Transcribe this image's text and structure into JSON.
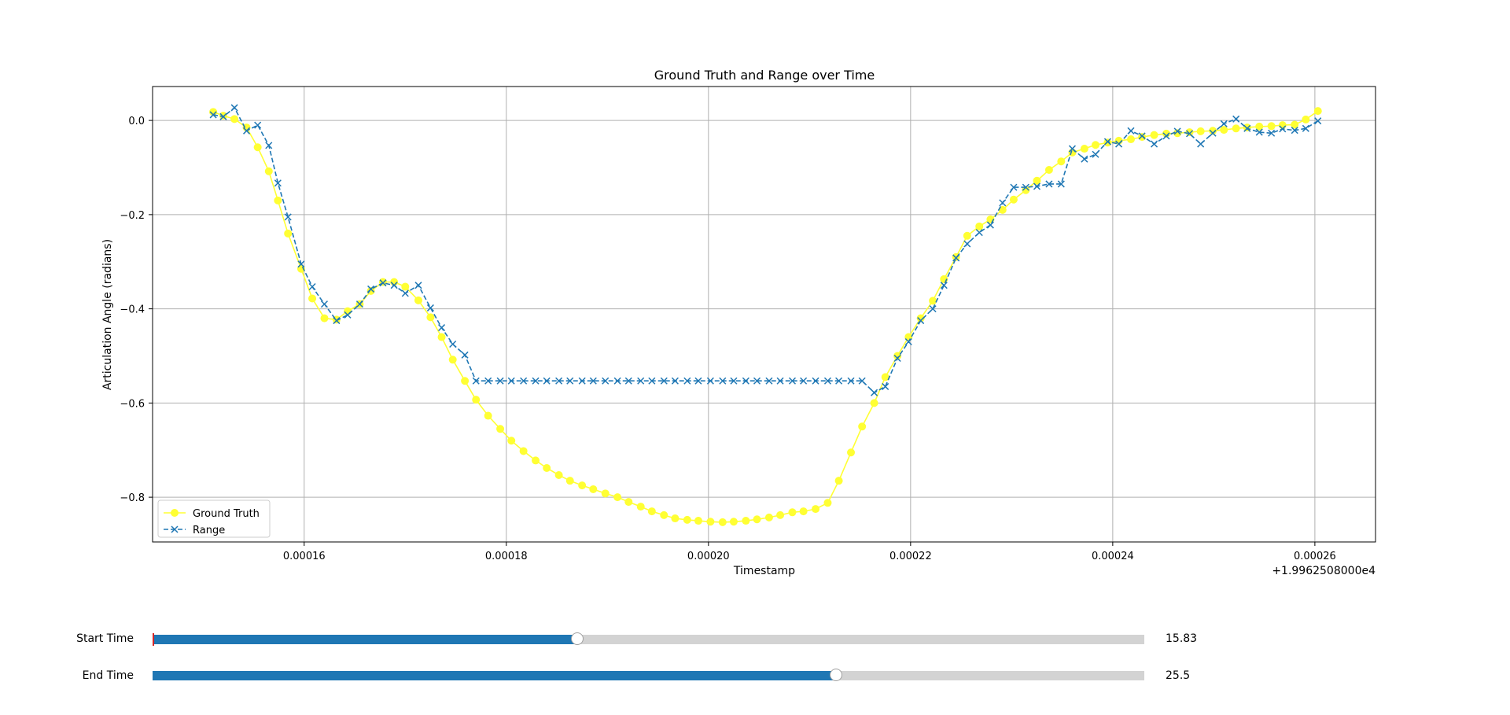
{
  "chart_data": {
    "type": "line",
    "title": "Ground Truth and Range over Time",
    "xlabel": "Timestamp",
    "ylabel": "Articulation Angle (radians)",
    "x_offset_label": "+1.9962508000e4",
    "xlim": [
      0.000145,
      0.000266
    ],
    "ylim": [
      -0.895,
      0.072
    ],
    "xticks": [
      0.00016,
      0.00018,
      0.0002,
      0.00022,
      0.00024,
      0.00026
    ],
    "xtick_labels": [
      "0.00016",
      "0.00018",
      "0.00020",
      "0.00022",
      "0.00024",
      "0.00026"
    ],
    "yticks": [
      0.0,
      -0.2,
      -0.4,
      -0.6,
      -0.8
    ],
    "ytick_labels": [
      "0.0",
      "−0.2",
      "−0.4",
      "−0.6",
      "−0.8"
    ],
    "grid": true,
    "legend_position": "lower-left",
    "series": [
      {
        "name": "Ground Truth",
        "color": "#ffff33",
        "marker": "circle",
        "linestyle": "solid",
        "x": [
          0.000151,
          0.000152,
          0.0001531,
          0.0001543,
          0.0001554,
          0.0001565,
          0.0001574,
          0.0001584,
          0.0001597,
          0.0001608,
          0.000162,
          0.0001632,
          0.0001643,
          0.0001655,
          0.0001666,
          0.0001678,
          0.0001689,
          0.00017,
          0.0001713,
          0.0001725,
          0.0001736,
          0.0001747,
          0.0001759,
          0.000177,
          0.0001782,
          0.0001794,
          0.0001805,
          0.0001817,
          0.0001829,
          0.000184,
          0.0001852,
          0.0001863,
          0.0001875,
          0.0001886,
          0.0001898,
          0.000191,
          0.0001921,
          0.0001933,
          0.0001944,
          0.0001956,
          0.0001967,
          0.0001979,
          0.000199,
          0.0002002,
          0.0002014,
          0.0002025,
          0.0002037,
          0.0002048,
          0.000206,
          0.0002071,
          0.0002083,
          0.0002094,
          0.0002106,
          0.0002118,
          0.0002129,
          0.0002141,
          0.0002152,
          0.0002164,
          0.0002175,
          0.0002187,
          0.0002198,
          0.000221,
          0.0002222,
          0.0002233,
          0.0002245,
          0.0002256,
          0.0002268,
          0.0002279,
          0.0002291,
          0.0002302,
          0.0002314,
          0.0002325,
          0.0002337,
          0.0002349,
          0.000236,
          0.0002372,
          0.0002383,
          0.0002395,
          0.0002406,
          0.0002418,
          0.0002429,
          0.0002441,
          0.0002453,
          0.0002464,
          0.0002476,
          0.0002487,
          0.0002499,
          0.000251,
          0.0002522,
          0.0002533,
          0.0002545,
          0.0002557,
          0.0002568,
          0.000258,
          0.0002591,
          0.0002603
        ],
        "y": [
          0.018,
          0.01,
          0.003,
          -0.015,
          -0.057,
          -0.108,
          -0.17,
          -0.24,
          -0.315,
          -0.378,
          -0.42,
          -0.423,
          -0.405,
          -0.39,
          -0.362,
          -0.343,
          -0.343,
          -0.353,
          -0.382,
          -0.418,
          -0.46,
          -0.508,
          -0.553,
          -0.593,
          -0.627,
          -0.655,
          -0.68,
          -0.702,
          -0.722,
          -0.738,
          -0.753,
          -0.765,
          -0.775,
          -0.783,
          -0.792,
          -0.8,
          -0.81,
          -0.82,
          -0.83,
          -0.838,
          -0.845,
          -0.848,
          -0.85,
          -0.852,
          -0.853,
          -0.852,
          -0.85,
          -0.847,
          -0.843,
          -0.838,
          -0.832,
          -0.83,
          -0.825,
          -0.812,
          -0.765,
          -0.705,
          -0.65,
          -0.6,
          -0.545,
          -0.5,
          -0.46,
          -0.42,
          -0.383,
          -0.337,
          -0.29,
          -0.245,
          -0.225,
          -0.21,
          -0.19,
          -0.168,
          -0.148,
          -0.128,
          -0.105,
          -0.087,
          -0.068,
          -0.06,
          -0.052,
          -0.047,
          -0.043,
          -0.04,
          -0.035,
          -0.031,
          -0.028,
          -0.027,
          -0.025,
          -0.023,
          -0.022,
          -0.02,
          -0.017,
          -0.015,
          -0.013,
          -0.012,
          -0.01,
          -0.009,
          0.002,
          0.02
        ]
      },
      {
        "name": "Range",
        "color": "#1f77b4",
        "marker": "x",
        "linestyle": "dashed",
        "x": [
          0.000151,
          0.000152,
          0.0001531,
          0.0001543,
          0.0001554,
          0.0001565,
          0.0001574,
          0.0001584,
          0.0001597,
          0.0001608,
          0.000162,
          0.0001632,
          0.0001643,
          0.0001655,
          0.0001666,
          0.0001678,
          0.0001689,
          0.00017,
          0.0001713,
          0.0001725,
          0.0001736,
          0.0001747,
          0.0001759,
          0.000177,
          0.0001782,
          0.0001794,
          0.0001805,
          0.0001817,
          0.0001829,
          0.000184,
          0.0001852,
          0.0001863,
          0.0001875,
          0.0001886,
          0.0001898,
          0.000191,
          0.0001921,
          0.0001933,
          0.0001944,
          0.0001956,
          0.0001967,
          0.0001979,
          0.000199,
          0.0002002,
          0.0002014,
          0.0002025,
          0.0002037,
          0.0002048,
          0.000206,
          0.0002071,
          0.0002083,
          0.0002094,
          0.0002106,
          0.0002118,
          0.0002129,
          0.0002141,
          0.0002152,
          0.0002164,
          0.0002175,
          0.0002187,
          0.0002198,
          0.000221,
          0.0002222,
          0.0002233,
          0.0002245,
          0.0002256,
          0.0002268,
          0.0002279,
          0.0002291,
          0.0002302,
          0.0002314,
          0.0002325,
          0.0002337,
          0.0002349,
          0.000236,
          0.0002372,
          0.0002383,
          0.0002395,
          0.0002406,
          0.0002418,
          0.0002429,
          0.0002441,
          0.0002453,
          0.0002464,
          0.0002476,
          0.0002487,
          0.0002499,
          0.000251,
          0.0002522,
          0.0002533,
          0.0002545,
          0.0002557,
          0.0002568,
          0.000258,
          0.0002591,
          0.0002603
        ],
        "y": [
          0.012,
          0.008,
          0.027,
          -0.022,
          -0.01,
          -0.053,
          -0.133,
          -0.205,
          -0.305,
          -0.353,
          -0.39,
          -0.425,
          -0.413,
          -0.39,
          -0.358,
          -0.345,
          -0.35,
          -0.367,
          -0.35,
          -0.398,
          -0.44,
          -0.475,
          -0.498,
          -0.553,
          -0.553,
          -0.553,
          -0.553,
          -0.553,
          -0.553,
          -0.553,
          -0.553,
          -0.553,
          -0.553,
          -0.553,
          -0.553,
          -0.553,
          -0.553,
          -0.553,
          -0.553,
          -0.553,
          -0.553,
          -0.553,
          -0.553,
          -0.553,
          -0.553,
          -0.553,
          -0.553,
          -0.553,
          -0.553,
          -0.553,
          -0.553,
          -0.553,
          -0.553,
          -0.553,
          -0.553,
          -0.553,
          -0.553,
          -0.578,
          -0.565,
          -0.505,
          -0.47,
          -0.425,
          -0.4,
          -0.35,
          -0.292,
          -0.262,
          -0.238,
          -0.222,
          -0.175,
          -0.142,
          -0.142,
          -0.14,
          -0.135,
          -0.135,
          -0.06,
          -0.082,
          -0.072,
          -0.045,
          -0.05,
          -0.022,
          -0.033,
          -0.05,
          -0.033,
          -0.023,
          -0.028,
          -0.05,
          -0.027,
          -0.007,
          0.003,
          -0.017,
          -0.025,
          -0.027,
          -0.018,
          -0.021,
          -0.017,
          -0.001
        ]
      }
    ]
  },
  "controls": {
    "start": {
      "label": "Start Time",
      "value_text": "15.83",
      "fraction": 0.428
    },
    "end": {
      "label": "End Time",
      "value_text": "25.5",
      "fraction": 0.689
    }
  }
}
